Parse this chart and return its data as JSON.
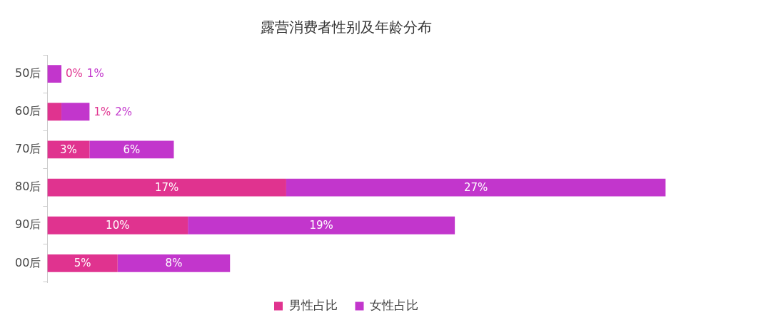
{
  "chart_data": {
    "type": "bar",
    "orientation": "horizontal",
    "stacked": true,
    "title": "露营消费者性别及年龄分布",
    "categories": [
      "50后",
      "60后",
      "70后",
      "80后",
      "90后",
      "00后"
    ],
    "legend": "bottom",
    "grid": false,
    "series": [
      {
        "name": "男性占比",
        "color": "#e0338f",
        "values": [
          0,
          1,
          3,
          17,
          10,
          5
        ],
        "value_labels": [
          "0%",
          "1%",
          "3%",
          "17%",
          "10%",
          "5%"
        ]
      },
      {
        "name": "女性占比",
        "color": "#c236cc",
        "values": [
          1,
          2,
          6,
          27,
          19,
          8
        ],
        "value_labels": [
          "1%",
          "2%",
          "6%",
          "27%",
          "19%",
          "8%"
        ]
      }
    ]
  }
}
